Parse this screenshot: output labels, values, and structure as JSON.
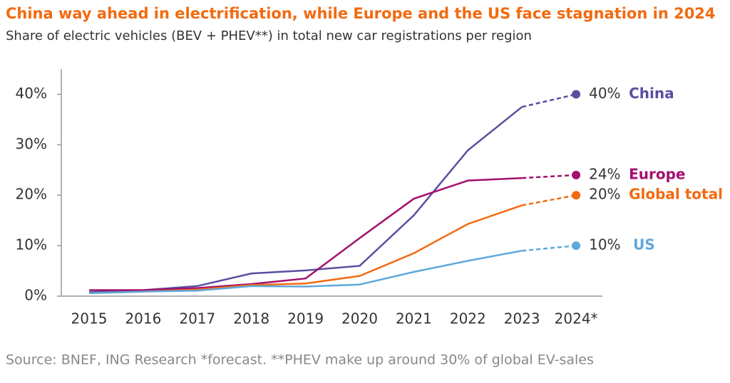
{
  "chart_data": {
    "type": "line",
    "title": "China way ahead in electrification, while Europe and the US face stagnation in 2024",
    "subtitle": "Share of electric vehicles (BEV + PHEV**) in total new car registrations per region",
    "source": "Source: BNEF, ING Research *forecast. **PHEV make up around 30% of global EV-sales",
    "categories": [
      "2015",
      "2016",
      "2017",
      "2018",
      "2019",
      "2020",
      "2021",
      "2022",
      "2023",
      "2024*"
    ],
    "ylim": [
      0,
      45
    ],
    "yticks": [
      {
        "value": 0,
        "label": "0%"
      },
      {
        "value": 10,
        "label": "10%"
      },
      {
        "value": 20,
        "label": "20%"
      },
      {
        "value": 30,
        "label": "30%"
      },
      {
        "value": 40,
        "label": "40%"
      }
    ],
    "dashed_last_segment": true,
    "series": [
      {
        "name": "China",
        "color": "#5a4ea0",
        "values": [
          0.8,
          1.2,
          2.0,
          4.5,
          5.1,
          6.0,
          16.0,
          28.9,
          37.5,
          40
        ],
        "value_labels": [
          null,
          null,
          null,
          null,
          null,
          null,
          null,
          null,
          null,
          "40%"
        ]
      },
      {
        "name": "Europe",
        "color": "#a3106e",
        "values": [
          1.2,
          1.2,
          1.6,
          2.4,
          3.5,
          11.5,
          19.3,
          22.9,
          23.4,
          24
        ],
        "value_labels": [
          null,
          null,
          null,
          null,
          null,
          null,
          null,
          null,
          null,
          "24%"
        ]
      },
      {
        "name": "Global total",
        "color": "#f26a10",
        "values": [
          0.6,
          0.9,
          1.3,
          2.2,
          2.5,
          4.0,
          8.5,
          14.3,
          18.0,
          20
        ],
        "value_labels": [
          null,
          null,
          null,
          null,
          null,
          null,
          null,
          null,
          null,
          "20%"
        ]
      },
      {
        "name": "US",
        "color": "#5fa8dc",
        "values": [
          0.6,
          0.9,
          1.1,
          2.0,
          1.9,
          2.3,
          4.8,
          7.0,
          9.0,
          10
        ],
        "value_labels": [
          null,
          null,
          null,
          null,
          null,
          null,
          null,
          null,
          null,
          "10%"
        ]
      }
    ]
  }
}
